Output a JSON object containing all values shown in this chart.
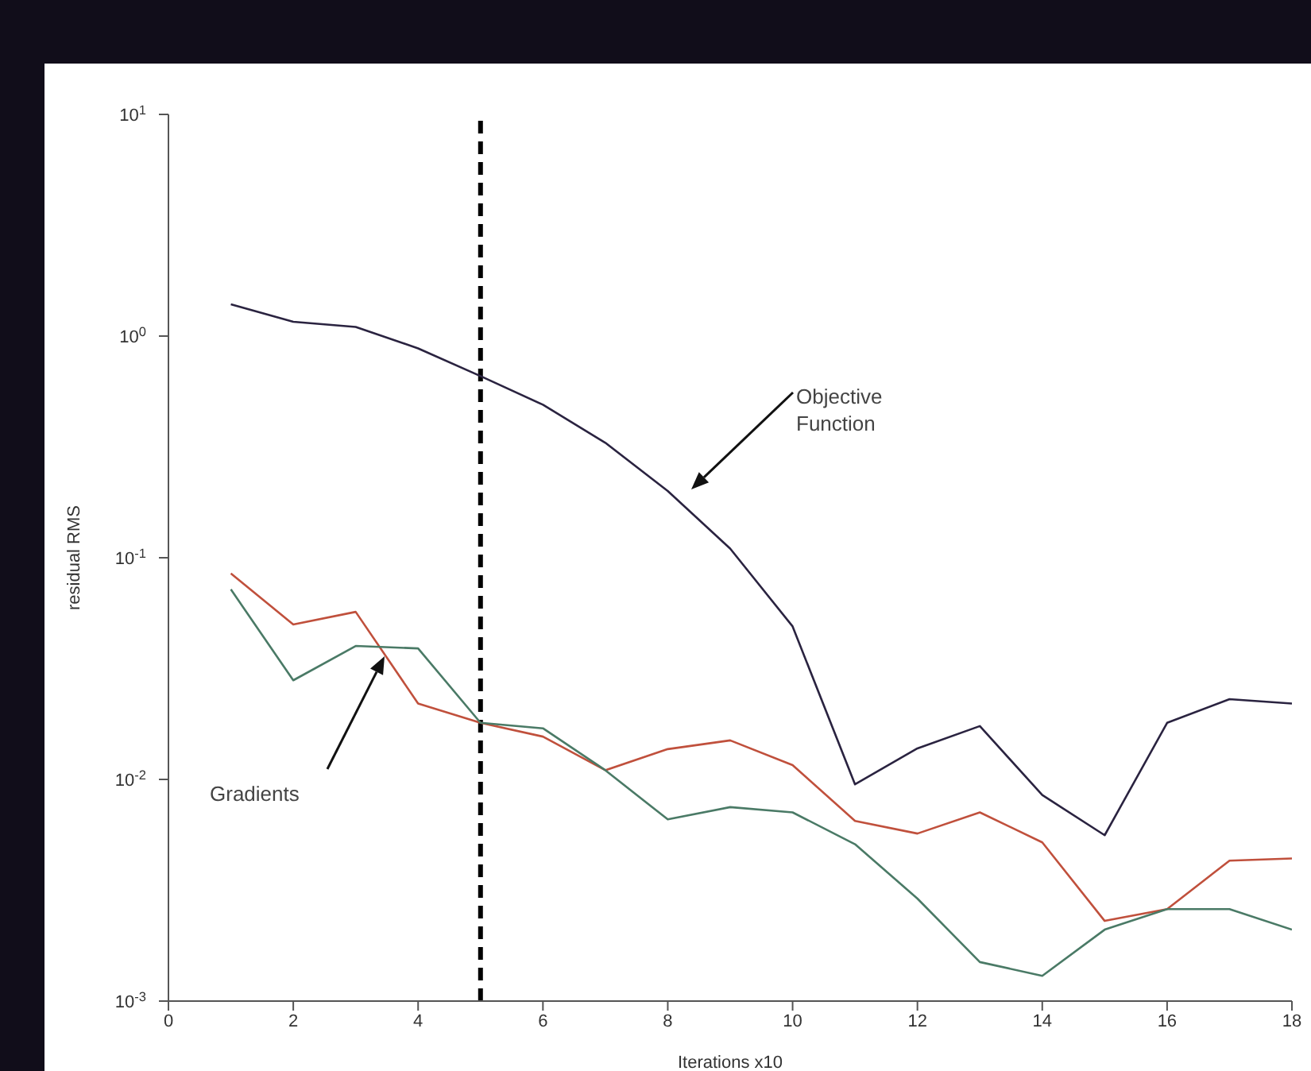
{
  "chart_data": {
    "type": "line",
    "xlabel": "Iterations x10",
    "ylabel": "residual RMS",
    "log": "y",
    "x": [
      1,
      2,
      3,
      4,
      5,
      6,
      7,
      8,
      9,
      10,
      11,
      12,
      13,
      14,
      15,
      16,
      17,
      18
    ],
    "series": [
      {
        "color": "#2a2340",
        "values": [
          1.39,
          1.16,
          1.1,
          0.88,
          0.66,
          0.49,
          0.33,
          0.2,
          0.11,
          0.049,
          0.0095,
          0.0138,
          0.0174,
          0.0085,
          0.0056,
          0.018,
          0.023,
          0.022
        ]
      },
      {
        "color": "#c0503c",
        "values": [
          0.085,
          0.05,
          0.057,
          0.022,
          0.018,
          0.0156,
          0.011,
          0.0137,
          0.015,
          0.0116,
          0.0065,
          0.0057,
          0.0071,
          0.0052,
          0.0023,
          0.0026,
          0.0043,
          0.0044
        ]
      },
      {
        "color": "#4a7a66",
        "values": [
          0.072,
          0.028,
          0.04,
          0.039,
          0.018,
          0.017,
          0.011,
          0.0066,
          0.0075,
          0.0071,
          0.0051,
          0.0029,
          0.0015,
          0.0013,
          0.0021,
          0.0026,
          0.0026,
          0.0021
        ]
      }
    ],
    "xlim": [
      0,
      18
    ],
    "xticks": [
      0,
      2,
      4,
      6,
      8,
      10,
      12,
      14,
      16,
      18
    ],
    "ylim": [
      0.001,
      10
    ],
    "yticks": [
      {
        "value": 0.001,
        "label": "10$^{-3}$"
      },
      {
        "value": 0.01,
        "label": "10$^{-2}$"
      },
      {
        "value": 0.1,
        "label": "10$^{-1}$"
      },
      {
        "value": 1,
        "label": "10$^{0}$"
      },
      {
        "value": 10,
        "label": "10$^{1}$"
      }
    ],
    "ref_lines": [
      {
        "axis": "x",
        "value": 5,
        "color": "#000000",
        "line_style": "dashed"
      }
    ],
    "annotations": [
      "Objective Function",
      "Gradients"
    ]
  }
}
